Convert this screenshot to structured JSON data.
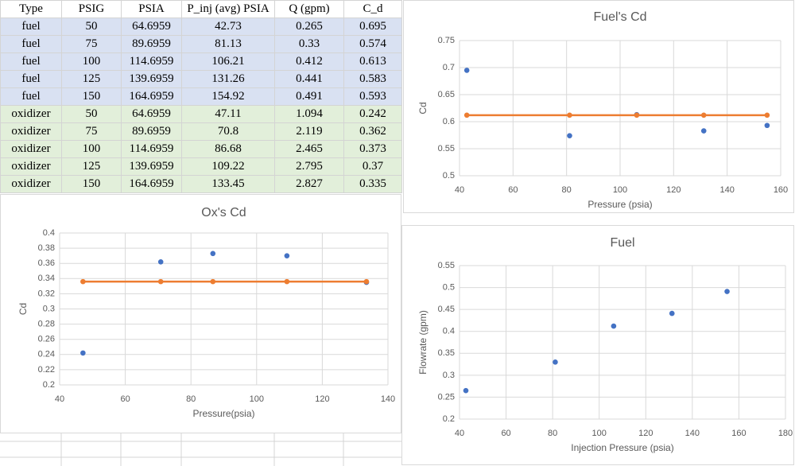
{
  "table": {
    "header": [
      "Type",
      "PSIG",
      "PSIA",
      "P_inj (avg) PSIA",
      "Q (gpm)",
      "C_d"
    ],
    "rows": [
      [
        "fuel",
        50,
        64.6959,
        42.73,
        0.265,
        0.695
      ],
      [
        "fuel",
        75,
        89.6959,
        81.13,
        0.33,
        0.574
      ],
      [
        "fuel",
        100,
        114.6959,
        106.21,
        0.412,
        0.613
      ],
      [
        "fuel",
        125,
        139.6959,
        131.26,
        0.441,
        0.583
      ],
      [
        "fuel",
        150,
        164.6959,
        154.92,
        0.491,
        0.593
      ],
      [
        "oxidizer",
        50,
        64.6959,
        47.11,
        1.094,
        0.242
      ],
      [
        "oxidizer",
        75,
        89.6959,
        70.8,
        2.119,
        0.362
      ],
      [
        "oxidizer",
        100,
        114.6959,
        86.68,
        2.465,
        0.373
      ],
      [
        "oxidizer",
        125,
        139.6959,
        109.22,
        2.795,
        0.37
      ],
      [
        "oxidizer",
        150,
        164.6959,
        133.45,
        2.827,
        0.335
      ]
    ]
  },
  "chart_data": [
    {
      "type": "scatter",
      "title": "Fuel's Cd",
      "x_label": "Pressure (psia)",
      "y_label": "Cd",
      "x": [
        42.73,
        81.13,
        106.21,
        131.26,
        154.92
      ],
      "xlim": [
        40,
        160
      ],
      "xticks": [
        40,
        60,
        80,
        100,
        120,
        140,
        160
      ],
      "ylim": [
        0.5,
        0.75
      ],
      "yticks": [
        0.5,
        0.55,
        0.6,
        0.65,
        0.7,
        0.75
      ],
      "grid": true,
      "series": [
        {
          "color": "#4472c4",
          "values": [
            0.695,
            0.574,
            0.613,
            0.583,
            0.593
          ]
        },
        {
          "color": "#ed7d31",
          "values": [
            0.612,
            0.612,
            0.612,
            0.612,
            0.612
          ],
          "line": true
        }
      ]
    },
    {
      "type": "scatter",
      "title": "Ox's Cd",
      "x_label": "Pressure(psia)",
      "y_label": "Cd",
      "x": [
        47.11,
        70.8,
        86.68,
        109.22,
        133.45
      ],
      "xlim": [
        40,
        140
      ],
      "xticks": [
        40,
        60,
        80,
        100,
        120,
        140
      ],
      "ylim": [
        0.2,
        0.4
      ],
      "yticks": [
        0.2,
        0.22,
        0.24,
        0.26,
        0.28,
        0.3,
        0.32,
        0.34,
        0.36,
        0.38,
        0.4
      ],
      "grid": true,
      "series": [
        {
          "color": "#4472c4",
          "values": [
            0.242,
            0.362,
            0.373,
            0.37,
            0.335
          ]
        },
        {
          "color": "#ed7d31",
          "values": [
            0.336,
            0.336,
            0.336,
            0.336,
            0.336
          ],
          "line": true
        }
      ]
    },
    {
      "type": "scatter",
      "title": "Fuel",
      "x_label": "Injection Pressure (psia)",
      "y_label": "Flowrate (gpm)",
      "x": [
        42.73,
        81.13,
        106.21,
        131.26,
        154.92
      ],
      "xlim": [
        40,
        180
      ],
      "xticks": [
        40,
        60,
        80,
        100,
        120,
        140,
        160,
        180
      ],
      "ylim": [
        0.2,
        0.55
      ],
      "yticks": [
        0.2,
        0.25,
        0.3,
        0.35,
        0.4,
        0.45,
        0.5,
        0.55
      ],
      "grid": true,
      "series": [
        {
          "color": "#4472c4",
          "values": [
            0.265,
            0.33,
            0.412,
            0.441,
            0.491
          ]
        }
      ]
    }
  ]
}
